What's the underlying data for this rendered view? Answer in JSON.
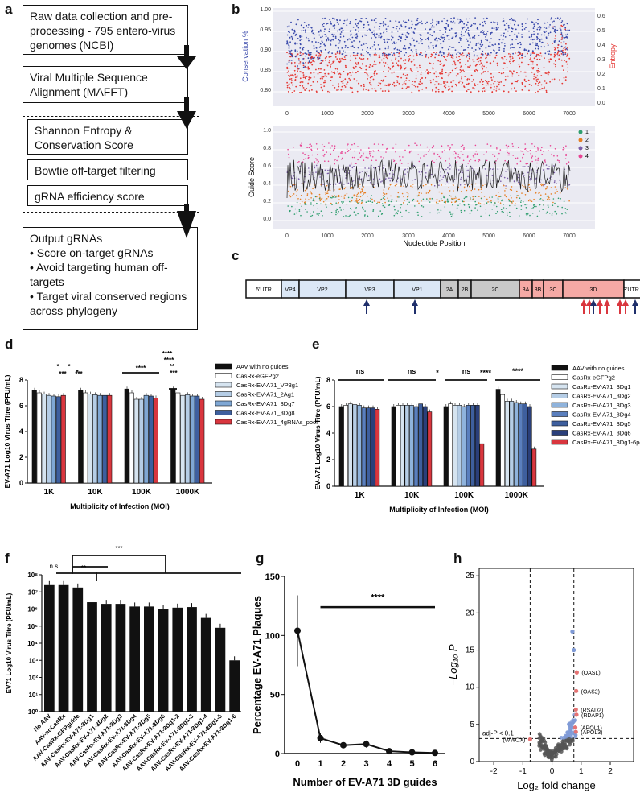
{
  "panels": {
    "a": "a",
    "b": "b",
    "c": "c",
    "d": "d",
    "e": "e",
    "f": "f",
    "g": "g",
    "h": "h"
  },
  "flow": {
    "step1": "Raw data collection and pre-processing - 795 entero-virus genomes (NCBI)",
    "step2": "Viral Multiple Sequence Alignment (MAFFT)",
    "step3": "Shannon Entropy & Conservation Score",
    "step4": "Bowtie off-target filtering",
    "step5": "gRNA efficiency score",
    "output_title": "Output gRNAs",
    "output_items": [
      "• Score on-target gRNAs",
      "• Avoid targeting human off-targets",
      "• Target viral conserved regions across phylogeny"
    ]
  },
  "panel_b": {
    "top": {
      "ylabel_left": "Conservation %",
      "ylabel_right": "Entropy",
      "left_ticks": [
        "1.00",
        "0.95",
        "0.90",
        "0.85",
        "0.80"
      ],
      "right_ticks": [
        "0.6",
        "0.5",
        "0.4",
        "0.3",
        "0.2",
        "0.1",
        "0.0"
      ],
      "x_ticks": [
        "0",
        "1000",
        "2000",
        "3000",
        "4000",
        "5000",
        "6000",
        "7000"
      ],
      "colors": {
        "conservation": "#3949ab",
        "entropy": "#e53935"
      }
    },
    "bottom": {
      "ylabel": "Guide Score",
      "xlabel": "Nucleotide Position",
      "y_ticks": [
        "1.0",
        "0.8",
        "0.6",
        "0.4",
        "0.2",
        "0.0"
      ],
      "x_ticks": [
        "0",
        "1000",
        "2000",
        "3000",
        "4000",
        "5000",
        "6000",
        "7000"
      ],
      "legend": [
        {
          "label": "1",
          "color": "#2e9e6e"
        },
        {
          "label": "2",
          "color": "#e67e22"
        },
        {
          "label": "3",
          "color": "#7b5ea7"
        },
        {
          "label": "4",
          "color": "#e84393"
        }
      ]
    }
  },
  "panel_c": {
    "segments": [
      "5'UTR",
      "VP4",
      "VP2",
      "VP3",
      "VP1",
      "2A",
      "2B",
      "2C",
      "3A",
      "3B",
      "3C",
      "3D",
      "3'UTR"
    ]
  },
  "panel_d": {
    "ylabel": "EV-A71 Log10 Virus Titre (PFU/mL)",
    "xlabel": "Multiplicity of Infection (MOI)",
    "categories": [
      "1K",
      "10K",
      "100K",
      "1000K"
    ],
    "y_ticks": [
      "0",
      "2",
      "4",
      "6",
      "8"
    ],
    "legend": [
      "AAV with no guides",
      "CasRx-eGFPg2",
      "CasRx-EV-A71_VP3g1",
      "CasRx-EV-A71_2Ag1",
      "CasRx-EV-A71_3Dg7",
      "CasRx-EV-A71_3Dg8",
      "CasRx-EV-A71_4gRNAs_pool"
    ],
    "colors": [
      "#111111",
      "#ffffff",
      "#d6e4f0",
      "#b5cde6",
      "#7fa7d4",
      "#3e5f9e",
      "#d9363e"
    ],
    "sig": [
      "*",
      "*",
      "***",
      "*",
      "***",
      "****",
      "****",
      "**",
      "***",
      "****"
    ]
  },
  "panel_e": {
    "ylabel": "EV-A71 Log10 Virus Titre (PFU/mL)",
    "xlabel": "Multiplicity of Infection (MOI)",
    "categories": [
      "1K",
      "10K",
      "100K",
      "1000K"
    ],
    "y_ticks": [
      "0",
      "2",
      "4",
      "6",
      "8"
    ],
    "legend": [
      "AAV with no guides",
      "CasRx-eGFPg2",
      "CasRx-EV-A71_3Dg1",
      "CasRx-EV-A71_3Dg2",
      "CasRx-EV-A71_3Dg3",
      "CasRx-EV-A71_3Dg4",
      "CasRx-EV-A71_3Dg5",
      "CasRx-EV-A71_3Dg6",
      "CasRx-EV-A71_3Dg1-6pool"
    ],
    "colors": [
      "#111111",
      "#ffffff",
      "#d6e4f0",
      "#b5cde6",
      "#8fb3dc",
      "#5a7fbe",
      "#3e5f9e",
      "#2a3f7a",
      "#d9363e"
    ],
    "sig": [
      "ns",
      "ns",
      "*",
      "ns",
      "****",
      "****"
    ]
  },
  "panel_f": {
    "ylabel": "EV71 Log10 Virus Titre (PFU/mL)",
    "y_ticks": [
      "10⁸",
      "10⁷",
      "10⁶",
      "10⁵",
      "10⁴",
      "10³",
      "10²",
      "10¹",
      "10⁰"
    ],
    "sig": [
      "n.s.",
      "**",
      "***"
    ]
  },
  "panel_g": {
    "ylabel": "Percentage EV-A71 Plaques",
    "xlabel": "Number of EV-A71 3D guides",
    "y_ticks": [
      "150",
      "100",
      "50",
      "0"
    ],
    "sig": "****"
  },
  "panel_h": {
    "xlabel": "Log₂ fold change",
    "ylabel": "−Log₁₀ P",
    "x_ticks": [
      "-2",
      "-1",
      "0",
      "1",
      "2"
    ],
    "y_ticks": [
      "25",
      "20",
      "15",
      "10",
      "5",
      "0"
    ],
    "threshold": "adj-P < 0.1",
    "genes": [
      "(OASL)",
      "(OAS2)",
      "(RSAD2)",
      "(RDAP1)",
      "(APOL1)",
      "(APOL3)",
      "(WWOX)"
    ]
  },
  "chart_data": [
    {
      "id": "d",
      "type": "bar",
      "title": "",
      "xlabel": "Multiplicity of Infection (MOI)",
      "ylabel": "EV-A71 Log10 Virus Titre (PFU/mL)",
      "ylim": [
        0,
        8
      ],
      "categories": [
        "1K",
        "10K",
        "100K",
        "1000K"
      ],
      "series": [
        {
          "name": "AAV with no guides",
          "values": [
            7.2,
            7.2,
            7.3,
            7.3
          ]
        },
        {
          "name": "CasRx-eGFPg2",
          "values": [
            7.0,
            7.0,
            7.0,
            7.0
          ]
        },
        {
          "name": "CasRx-EV-A71_VP3g1",
          "values": [
            6.9,
            6.9,
            6.5,
            6.8
          ]
        },
        {
          "name": "CasRx-EV-A71_2Ag1",
          "values": [
            6.8,
            6.85,
            6.5,
            6.85
          ]
        },
        {
          "name": "CasRx-EV-A71_3Dg7",
          "values": [
            6.75,
            6.8,
            6.8,
            6.75
          ]
        },
        {
          "name": "CasRx-EV-A71_3Dg8",
          "values": [
            6.7,
            6.8,
            6.75,
            6.75
          ]
        },
        {
          "name": "CasRx-EV-A71_4gRNAs_pool",
          "values": [
            6.8,
            6.8,
            6.6,
            6.5
          ]
        }
      ]
    },
    {
      "id": "e",
      "type": "bar",
      "title": "",
      "xlabel": "Multiplicity of Infection (MOI)",
      "ylabel": "EV-A71 Log10 Virus Titre (PFU/mL)",
      "ylim": [
        0,
        8
      ],
      "categories": [
        "1K",
        "10K",
        "100K",
        "1000K"
      ],
      "series": [
        {
          "name": "AAV with no guides",
          "values": [
            6.0,
            6.0,
            6.0,
            7.3
          ]
        },
        {
          "name": "CasRx-eGFPg2",
          "values": [
            6.1,
            6.1,
            6.2,
            6.9
          ]
        },
        {
          "name": "CasRx-EV-A71_3Dg1",
          "values": [
            6.2,
            6.1,
            6.1,
            6.4
          ]
        },
        {
          "name": "CasRx-EV-A71_3Dg2",
          "values": [
            6.15,
            6.1,
            6.1,
            6.4
          ]
        },
        {
          "name": "CasRx-EV-A71_3Dg3",
          "values": [
            6.1,
            6.1,
            6.0,
            6.3
          ]
        },
        {
          "name": "CasRx-EV-A71_3Dg4",
          "values": [
            5.9,
            6.0,
            6.1,
            6.2
          ]
        },
        {
          "name": "CasRx-EV-A71_3Dg5",
          "values": [
            5.9,
            6.2,
            6.1,
            6.2
          ]
        },
        {
          "name": "CasRx-EV-A71_3Dg6",
          "values": [
            5.9,
            6.0,
            6.1,
            6.0
          ]
        },
        {
          "name": "CasRx-EV-A71_3Dg1-6pool",
          "values": [
            5.8,
            5.6,
            3.2,
            2.8
          ]
        }
      ]
    },
    {
      "id": "f",
      "type": "bar",
      "title": "",
      "ylabel": "EV71 Log10 Virus Titre (PFU/mL)",
      "yscale": "log",
      "ylim": [
        1,
        100000000
      ],
      "categories": [
        "No AAV",
        "AAV-noCasRx",
        "AAV-CasRx-GFPguide",
        "AAV-CasRx-EV-A71-3Dg1",
        "AAV-CasRx-EV-A71-3Dg2",
        "AAV-CasRx-EV-A71-3Dg3",
        "AAV-CasRx-EV-A71-3Dg4",
        "AAV-CasRx-EV-A71-3Dg5",
        "AAV-CasRx-EV-A71-3Dg6",
        "AAV-CasRx-EV-A71-3Dg1-2",
        "AAV-CasRx-EV-A71-3Dg1-3",
        "AAV-CasRx-EV-A71-3Dg1-4",
        "AAV-CasRx-EV-A71-3Dg1-5",
        "AAV-CasRx-EV-A71-3Dg1-6"
      ],
      "values": [
        25000000,
        25000000,
        18000000,
        2500000,
        2000000,
        2000000,
        1400000,
        1400000,
        1000000,
        1200000,
        1300000,
        300000,
        80000,
        1000
      ]
    },
    {
      "id": "g",
      "type": "line",
      "title": "",
      "xlabel": "Number of EV-A71 3D guides",
      "ylabel": "Percentage EV-A71 Plaques",
      "ylim": [
        0,
        150
      ],
      "x": [
        0,
        1,
        2,
        3,
        4,
        5,
        6
      ],
      "values": [
        104,
        13,
        7,
        8,
        2,
        1,
        0.5
      ],
      "errors": [
        30,
        4,
        1,
        3,
        1,
        0.5,
        0.5
      ]
    },
    {
      "id": "h",
      "type": "scatter",
      "title": "",
      "xlabel": "Log₂ fold change",
      "ylabel": "−Log₁₀ P",
      "xlim": [
        -2.5,
        2.8
      ],
      "ylim": [
        0,
        26
      ],
      "labeled_points": [
        {
          "gene": "(OASL)",
          "x": 0.85,
          "y": 12
        },
        {
          "gene": "(OAS2)",
          "x": 0.83,
          "y": 9.5
        },
        {
          "gene": "(RSAD2)",
          "x": 0.82,
          "y": 7
        },
        {
          "gene": "(RDAP1)",
          "x": 0.84,
          "y": 6.3
        },
        {
          "gene": "(APOL1)",
          "x": 0.8,
          "y": 4.6
        },
        {
          "gene": "(APOL3)",
          "x": 0.82,
          "y": 4
        },
        {
          "gene": "(WWOX)",
          "x": -0.75,
          "y": 3
        }
      ]
    }
  ]
}
